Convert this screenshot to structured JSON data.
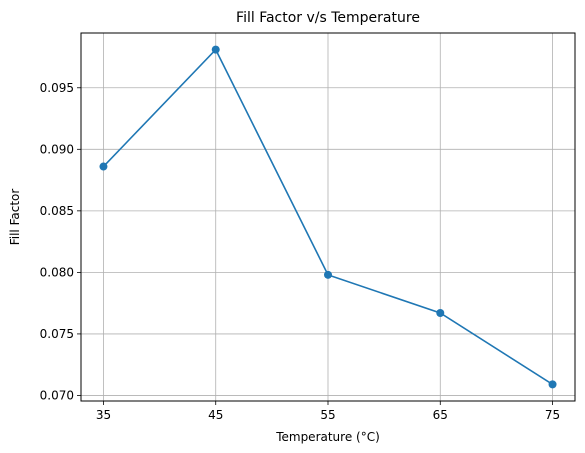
{
  "chart_data": {
    "type": "line",
    "title": "Fill Factor v/s Temperature",
    "xlabel": "Temperature (°C)",
    "ylabel": "Fill Factor",
    "x": [
      35,
      45,
      55,
      65,
      75
    ],
    "series": [
      {
        "values": [
          0.0886,
          0.0981,
          0.0798,
          0.0767,
          0.0709
        ]
      }
    ],
    "xticks": [
      "35",
      "45",
      "55",
      "65",
      "75"
    ],
    "yticks": [
      "0.070",
      "0.075",
      "0.080",
      "0.085",
      "0.090",
      "0.095"
    ],
    "xlim": [
      33,
      77
    ],
    "ylim": [
      0.06955,
      0.09945
    ],
    "grid": true,
    "marker": "circle",
    "line_color": "#1f77b4"
  }
}
